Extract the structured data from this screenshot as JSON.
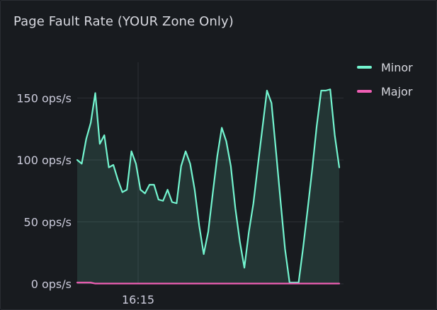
{
  "panel": {
    "title": "Page Fault Rate (YOUR Zone Only)"
  },
  "colors": {
    "background": "#181b1f",
    "grid": "#2c2f35",
    "minor": "#73f4cf",
    "major": "#f05fb5"
  },
  "chart_data": {
    "type": "line",
    "title": "Page Fault Rate (YOUR Zone Only)",
    "xlabel": "",
    "ylabel": "",
    "x_ticks": [
      "16:15"
    ],
    "y_ticks": [
      "0 ops/s",
      "50 ops/s",
      "100 ops/s",
      "150 ops/s"
    ],
    "y_tick_values": [
      0,
      50,
      100,
      150
    ],
    "ylim": [
      0,
      175
    ],
    "grid": true,
    "legend_position": "right",
    "series": [
      {
        "name": "Minor",
        "fill": true,
        "values": [
          100,
          97,
          117,
          130,
          154,
          113,
          120,
          94,
          96,
          84,
          74,
          76,
          107,
          97,
          76,
          73,
          80,
          80,
          68,
          67,
          76,
          66,
          65,
          95,
          107,
          97,
          76,
          47,
          24,
          42,
          73,
          103,
          126,
          115,
          95,
          61,
          34,
          13,
          42,
          65,
          96,
          126,
          156,
          146,
          107,
          67,
          28,
          1,
          1,
          1,
          29,
          60,
          92,
          127,
          156,
          156,
          157,
          120,
          94
        ]
      },
      {
        "name": "Major",
        "fill": false,
        "values": [
          1,
          1,
          1,
          1,
          0.2,
          0.2,
          0.2,
          0.2,
          0.2,
          0.2,
          0.2,
          0.2,
          0.2,
          0.2,
          0.2,
          0.2,
          0.2,
          0.2,
          0.2,
          0.2,
          0.2,
          0.2,
          0.2,
          0.2,
          0.2,
          0.2,
          0.2,
          0.2,
          0.2,
          0.2,
          0.2,
          0.2,
          0.2,
          0.2,
          0.2,
          0.2,
          0.2,
          0.2,
          0.2,
          0.2,
          0.2,
          0.2,
          0.2,
          0.2,
          0.2,
          0.2,
          0.2,
          0.2,
          0.2,
          0.2,
          0.2,
          0.2,
          0.2,
          0.2,
          0.2,
          0.2,
          0.2,
          0.2,
          0.2
        ]
      }
    ]
  }
}
